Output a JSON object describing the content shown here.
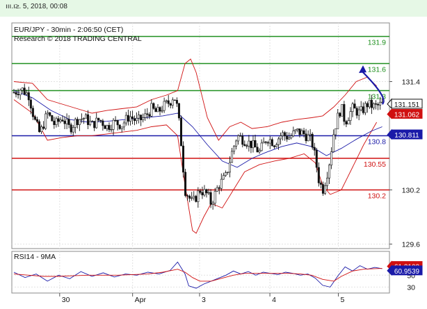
{
  "header": {
    "timestamp": "ııı.ı≥. 5, 2018, 00:08"
  },
  "chart_data": [
    {
      "type": "candlestick",
      "title": "EUR/JPY - 30min - 2:06:50 (CET)",
      "subtitle": "Research © 2018 TRADING CENTRAL",
      "ylim": [
        129.55,
        132.05
      ],
      "y_ticks": [
        {
          "value": 131.4,
          "label": "131.4"
        },
        {
          "value": 130.2,
          "label": "130.2"
        },
        {
          "value": 129.6,
          "label": "129.6"
        }
      ],
      "x_ticks": [
        {
          "x": 0.123,
          "label": "30"
        },
        {
          "x": 0.319,
          "label": "Apr"
        },
        {
          "x": 0.499,
          "label": "3"
        },
        {
          "x": 0.688,
          "label": "4"
        },
        {
          "x": 0.872,
          "label": "5"
        }
      ],
      "levels": [
        {
          "value": 131.9,
          "label": "131.9",
          "color": "#1e8f1e"
        },
        {
          "value": 131.6,
          "label": "131.6",
          "color": "#1e8f1e"
        },
        {
          "value": 131.3,
          "label": "131.3",
          "color": "#1e8f1e"
        },
        {
          "value": 130.8,
          "label": "130.8",
          "color": "#1a1aa8"
        },
        {
          "value": 130.55,
          "label": "130.55",
          "color": "#d01010"
        },
        {
          "value": 130.2,
          "label": "130.2",
          "color": "#d01010"
        }
      ],
      "last_price": {
        "value": 131.151,
        "label": "131.151",
        "color": "#ffffff"
      },
      "price_tags": [
        {
          "value": 131.062,
          "label": "131.062",
          "color": "#d01010"
        },
        {
          "value": 130.811,
          "label": "130.811",
          "color": "#1a1aa8"
        }
      ],
      "forecast": {
        "from": [
          0.99,
          131.15
        ],
        "to": [
          1.065,
          131.58
        ],
        "color": "#1a1aa8"
      },
      "price_path": [
        [
          0.0,
          131.28
        ],
        [
          0.02,
          131.32
        ],
        [
          0.04,
          131.25
        ],
        [
          0.055,
          130.98
        ],
        [
          0.07,
          130.82
        ],
        [
          0.09,
          131.05
        ],
        [
          0.11,
          130.92
        ],
        [
          0.13,
          131.0
        ],
        [
          0.15,
          130.88
        ],
        [
          0.17,
          130.98
        ],
        [
          0.19,
          131.0
        ],
        [
          0.21,
          130.92
        ],
        [
          0.23,
          130.98
        ],
        [
          0.25,
          130.9
        ],
        [
          0.27,
          130.95
        ],
        [
          0.29,
          130.92
        ],
        [
          0.31,
          131.02
        ],
        [
          0.33,
          130.96
        ],
        [
          0.35,
          131.0
        ],
        [
          0.37,
          131.1
        ],
        [
          0.385,
          131.05
        ],
        [
          0.4,
          131.12
        ],
        [
          0.42,
          131.18
        ],
        [
          0.43,
          131.25
        ],
        [
          0.44,
          131.1
        ],
        [
          0.45,
          130.7
        ],
        [
          0.46,
          130.2
        ],
        [
          0.48,
          130.05
        ],
        [
          0.5,
          130.2
        ],
        [
          0.52,
          130.15
        ],
        [
          0.53,
          130.05
        ],
        [
          0.55,
          130.25
        ],
        [
          0.57,
          130.35
        ],
        [
          0.585,
          130.6
        ],
        [
          0.6,
          130.8
        ],
        [
          0.62,
          130.75
        ],
        [
          0.64,
          130.7
        ],
        [
          0.66,
          130.62
        ],
        [
          0.68,
          130.78
        ],
        [
          0.7,
          130.72
        ],
        [
          0.72,
          130.82
        ],
        [
          0.74,
          130.78
        ],
        [
          0.76,
          130.85
        ],
        [
          0.78,
          130.82
        ],
        [
          0.8,
          130.75
        ],
        [
          0.81,
          130.55
        ],
        [
          0.82,
          130.3
        ],
        [
          0.83,
          130.2
        ],
        [
          0.84,
          130.35
        ],
        [
          0.85,
          130.55
        ],
        [
          0.86,
          130.85
        ],
        [
          0.87,
          131.0
        ],
        [
          0.88,
          131.12
        ],
        [
          0.89,
          130.95
        ],
        [
          0.91,
          131.1
        ],
        [
          0.93,
          131.05
        ],
        [
          0.95,
          131.15
        ],
        [
          0.97,
          131.12
        ],
        [
          0.99,
          131.15
        ]
      ],
      "ma_path": [
        [
          0.0,
          131.3
        ],
        [
          0.05,
          131.22
        ],
        [
          0.1,
          131.08
        ],
        [
          0.15,
          130.98
        ],
        [
          0.2,
          130.95
        ],
        [
          0.25,
          130.96
        ],
        [
          0.3,
          130.98
        ],
        [
          0.35,
          131.0
        ],
        [
          0.4,
          131.02
        ],
        [
          0.44,
          131.05
        ],
        [
          0.48,
          130.9
        ],
        [
          0.52,
          130.7
        ],
        [
          0.56,
          130.52
        ],
        [
          0.6,
          130.45
        ],
        [
          0.64,
          130.55
        ],
        [
          0.68,
          130.62
        ],
        [
          0.72,
          130.68
        ],
        [
          0.76,
          130.72
        ],
        [
          0.8,
          130.68
        ],
        [
          0.84,
          130.58
        ],
        [
          0.88,
          130.66
        ],
        [
          0.92,
          130.76
        ],
        [
          0.96,
          130.85
        ],
        [
          0.99,
          130.9
        ]
      ],
      "band_upper_path": [
        [
          0.0,
          131.4
        ],
        [
          0.05,
          131.38
        ],
        [
          0.09,
          131.2
        ],
        [
          0.13,
          131.15
        ],
        [
          0.17,
          131.1
        ],
        [
          0.21,
          131.05
        ],
        [
          0.25,
          131.08
        ],
        [
          0.29,
          131.1
        ],
        [
          0.33,
          131.12
        ],
        [
          0.37,
          131.2
        ],
        [
          0.41,
          131.25
        ],
        [
          0.44,
          131.3
        ],
        [
          0.46,
          131.6
        ],
        [
          0.475,
          131.65
        ],
        [
          0.49,
          131.5
        ],
        [
          0.52,
          131.0
        ],
        [
          0.55,
          130.75
        ],
        [
          0.58,
          130.9
        ],
        [
          0.61,
          130.95
        ],
        [
          0.64,
          130.88
        ],
        [
          0.68,
          130.9
        ],
        [
          0.72,
          130.95
        ],
        [
          0.76,
          130.98
        ],
        [
          0.8,
          131.0
        ],
        [
          0.83,
          131.02
        ],
        [
          0.86,
          131.12
        ],
        [
          0.89,
          131.25
        ],
        [
          0.92,
          131.4
        ],
        [
          0.95,
          131.45
        ],
        [
          0.975,
          131.35
        ]
      ],
      "band_lower_path": [
        [
          0.0,
          131.2
        ],
        [
          0.05,
          131.05
        ],
        [
          0.09,
          130.75
        ],
        [
          0.13,
          130.78
        ],
        [
          0.17,
          130.8
        ],
        [
          0.21,
          130.8
        ],
        [
          0.25,
          130.82
        ],
        [
          0.29,
          130.84
        ],
        [
          0.33,
          130.86
        ],
        [
          0.37,
          130.9
        ],
        [
          0.41,
          130.92
        ],
        [
          0.44,
          130.8
        ],
        [
          0.46,
          130.25
        ],
        [
          0.48,
          129.75
        ],
        [
          0.49,
          129.72
        ],
        [
          0.51,
          129.9
        ],
        [
          0.53,
          130.05
        ],
        [
          0.56,
          130.0
        ],
        [
          0.59,
          130.2
        ],
        [
          0.62,
          130.4
        ],
        [
          0.66,
          130.48
        ],
        [
          0.7,
          130.52
        ],
        [
          0.74,
          130.55
        ],
        [
          0.78,
          130.6
        ],
        [
          0.81,
          130.5
        ],
        [
          0.83,
          130.25
        ],
        [
          0.85,
          130.15
        ],
        [
          0.88,
          130.2
        ],
        [
          0.91,
          130.45
        ],
        [
          0.94,
          130.7
        ],
        [
          0.975,
          130.95
        ]
      ]
    },
    {
      "type": "line",
      "title": "RSI14 - 9MA",
      "ylim": [
        20,
        90
      ],
      "y_ticks": [
        {
          "value": 50,
          "label": "50"
        },
        {
          "value": 30,
          "label": "30"
        }
      ],
      "price_tags": [
        {
          "value": 61.3102,
          "label": "61.3102",
          "color": "#d01010"
        },
        {
          "value": 60.9539,
          "label": "60.9539",
          "color": "#1a1aa8"
        }
      ],
      "series": [
        {
          "name": "RSI14",
          "color": "#1a1aa8",
          "values": [
            [
              0.0,
              55
            ],
            [
              0.03,
              46
            ],
            [
              0.06,
              52
            ],
            [
              0.09,
              40
            ],
            [
              0.12,
              50
            ],
            [
              0.15,
              44
            ],
            [
              0.18,
              56
            ],
            [
              0.21,
              48
            ],
            [
              0.24,
              54
            ],
            [
              0.27,
              47
            ],
            [
              0.3,
              52
            ],
            [
              0.33,
              50
            ],
            [
              0.36,
              55
            ],
            [
              0.39,
              52
            ],
            [
              0.42,
              58
            ],
            [
              0.44,
              72
            ],
            [
              0.46,
              52
            ],
            [
              0.47,
              32
            ],
            [
              0.49,
              28
            ],
            [
              0.51,
              35
            ],
            [
              0.53,
              40
            ],
            [
              0.55,
              45
            ],
            [
              0.57,
              50
            ],
            [
              0.59,
              57
            ],
            [
              0.61,
              52
            ],
            [
              0.63,
              56
            ],
            [
              0.65,
              50
            ],
            [
              0.67,
              55
            ],
            [
              0.69,
              53
            ],
            [
              0.71,
              51
            ],
            [
              0.73,
              55
            ],
            [
              0.75,
              53
            ],
            [
              0.77,
              50
            ],
            [
              0.79,
              52
            ],
            [
              0.81,
              45
            ],
            [
              0.83,
              33
            ],
            [
              0.85,
              30
            ],
            [
              0.87,
              48
            ],
            [
              0.89,
              64
            ],
            [
              0.91,
              57
            ],
            [
              0.93,
              66
            ],
            [
              0.95,
              60
            ],
            [
              0.97,
              63
            ],
            [
              0.99,
              61
            ]
          ]
        },
        {
          "name": "9MA",
          "color": "#d01010",
          "values": [
            [
              0.0,
              52
            ],
            [
              0.04,
              50
            ],
            [
              0.08,
              48
            ],
            [
              0.12,
              48
            ],
            [
              0.16,
              49
            ],
            [
              0.2,
              50
            ],
            [
              0.24,
              50
            ],
            [
              0.28,
              50
            ],
            [
              0.32,
              51
            ],
            [
              0.36,
              52
            ],
            [
              0.4,
              55
            ],
            [
              0.44,
              60
            ],
            [
              0.46,
              55
            ],
            [
              0.48,
              46
            ],
            [
              0.5,
              40
            ],
            [
              0.53,
              40
            ],
            [
              0.56,
              45
            ],
            [
              0.59,
              50
            ],
            [
              0.62,
              53
            ],
            [
              0.65,
              53
            ],
            [
              0.68,
              53
            ],
            [
              0.71,
              53
            ],
            [
              0.74,
              53
            ],
            [
              0.77,
              52
            ],
            [
              0.8,
              50
            ],
            [
              0.83,
              43
            ],
            [
              0.86,
              40
            ],
            [
              0.88,
              48
            ],
            [
              0.91,
              57
            ],
            [
              0.94,
              60
            ],
            [
              0.97,
              61
            ],
            [
              0.99,
              61.3
            ]
          ]
        }
      ]
    }
  ]
}
